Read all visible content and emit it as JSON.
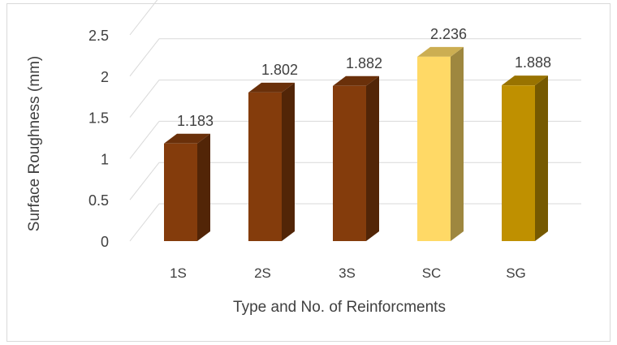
{
  "chart_data": {
    "type": "bar",
    "categories": [
      "1S",
      "2S",
      "3S",
      "SC",
      "SG"
    ],
    "values": [
      1.183,
      1.802,
      1.882,
      2.236,
      1.888
    ],
    "data_labels": [
      "1.183",
      "1.802",
      "1.882",
      "2.236",
      "1.888"
    ],
    "colors": [
      "#843c0c",
      "#843c0c",
      "#843c0c",
      "#ffd966",
      "#bf9000"
    ],
    "title": "",
    "xlabel": "Type and No. of Reinforcments",
    "ylabel": "Surface Roughness (mm)",
    "ylim": [
      0,
      2.5
    ],
    "yticks": [
      "0",
      "0.5",
      "1",
      "1.5",
      "2",
      "2.5"
    ],
    "grid": true,
    "style": "3d-column"
  }
}
